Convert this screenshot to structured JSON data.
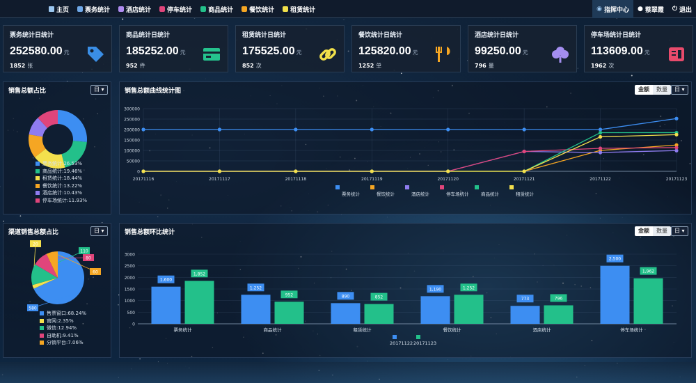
{
  "nav": {
    "items": [
      {
        "label": "主页",
        "icon": "home-icon"
      },
      {
        "label": "票务统计",
        "icon": "tag-icon"
      },
      {
        "label": "酒店统计",
        "icon": "diamond-icon"
      },
      {
        "label": "停车统计",
        "icon": "car-icon"
      },
      {
        "label": "商品统计",
        "icon": "grid-icon"
      },
      {
        "label": "餐饮统计",
        "icon": "cutlery-icon"
      },
      {
        "label": "租赁统计",
        "icon": "rent-icon"
      }
    ],
    "command_center": "指挥中心",
    "user": "蔡翠霞",
    "logout": "退出"
  },
  "cards": [
    {
      "title": "票务统计日统计",
      "value": "252580.00",
      "unit": "元",
      "count": "1852",
      "count_unit": "张",
      "icon": "ticket-tag-icon",
      "color": "#3a8ee6"
    },
    {
      "title": "商品统计日统计",
      "value": "185252.00",
      "unit": "元",
      "count": "952",
      "count_unit": "件",
      "icon": "card-icon",
      "color": "#25c28d"
    },
    {
      "title": "租赁统计日统计",
      "value": "175525.00",
      "unit": "元",
      "count": "852",
      "count_unit": "次",
      "icon": "chain-icon",
      "color": "#f1e04a"
    },
    {
      "title": "餐饮统计日统计",
      "value": "125820.00",
      "unit": "元",
      "count": "1252",
      "count_unit": "单",
      "icon": "fork-knife-icon",
      "color": "#f5a623"
    },
    {
      "title": "酒店统计日统计",
      "value": "99250.00",
      "unit": "元",
      "count": "796",
      "count_unit": "量",
      "icon": "tree-icon",
      "color": "#a48ef0"
    },
    {
      "title": "停车场统计日统计",
      "value": "113609.00",
      "unit": "元",
      "count": "1962",
      "count_unit": "次",
      "icon": "parking-icon",
      "color": "#e84b6c"
    }
  ],
  "panel_sales_share": {
    "title": "销售总额占比",
    "dropdown": "日 ▾"
  },
  "panel_sales_trend": {
    "title": "销售总额曲线统计图",
    "btn_amount": "金额",
    "btn_count": "数量",
    "dropdown": "日 ▾"
  },
  "panel_channel": {
    "title": "渠道销售总额占比",
    "dropdown": "日 ▾"
  },
  "panel_ratio": {
    "title": "销售总额环比统计",
    "btn_amount": "金额",
    "btn_count": "数量",
    "dropdown": "日 ▾"
  },
  "colors": {
    "blue": "#3d8ef2",
    "orange": "#f5a623",
    "purple": "#8f7cf0",
    "pink": "#e0457b",
    "green": "#23c08a",
    "yellow": "#f4e04d"
  },
  "chart_data": [
    {
      "type": "pie",
      "name": "销售总额占比",
      "labels": [
        "票务统计:26.53%",
        "商品统计:19.46%",
        "租赁统计:18.44%",
        "餐饮统计:13.22%",
        "酒店统计:10.43%",
        "停车场统计:11.93%"
      ],
      "values": [
        26.53,
        19.46,
        18.44,
        13.22,
        10.43,
        11.93
      ],
      "colors": [
        "#3d8ef2",
        "#23c08a",
        "#f4e04d",
        "#f5a623",
        "#8f7cf0",
        "#e0457b"
      ]
    },
    {
      "type": "line",
      "title": "销售总额曲线统计图",
      "x": [
        "20171116",
        "20171117",
        "20171118",
        "20171119",
        "20171120",
        "20171121",
        "20171122",
        "20171123"
      ],
      "yticks": [
        0,
        50000,
        100000,
        150000,
        200000,
        250000,
        300000
      ],
      "ylim": [
        0,
        300000
      ],
      "series": [
        {
          "name": "票务统计",
          "color": "#3d8ef2",
          "values": [
            200000,
            200000,
            200000,
            200000,
            200000,
            200000,
            200000,
            252580
          ]
        },
        {
          "name": "餐饮统计",
          "color": "#f5a623",
          "values": [
            0,
            0,
            0,
            0,
            0,
            0,
            100000,
            125820
          ]
        },
        {
          "name": "酒店统计",
          "color": "#8f7cf0",
          "values": [
            0,
            0,
            0,
            0,
            0,
            95000,
            90000,
            99250
          ]
        },
        {
          "name": "停车场统计",
          "color": "#e0457b",
          "values": [
            0,
            0,
            0,
            0,
            0,
            95000,
            110000,
            113609
          ]
        },
        {
          "name": "商品统计",
          "color": "#23c08a",
          "values": [
            0,
            0,
            0,
            0,
            0,
            0,
            185000,
            185252
          ]
        },
        {
          "name": "租赁统计",
          "color": "#f4e04d",
          "values": [
            0,
            0,
            0,
            0,
            0,
            0,
            165000,
            175525
          ]
        }
      ]
    },
    {
      "type": "pie",
      "name": "渠道销售总额占比",
      "labels": [
        "售票窗口:68.24%",
        "官网:2.35%",
        "微信:12.94%",
        "自助机:9.41%",
        "分销平台:7.06%"
      ],
      "values": [
        68.24,
        2.35,
        12.94,
        9.41,
        7.06
      ],
      "colors": [
        "#3d8ef2",
        "#f4e04d",
        "#23c08a",
        "#e0457b",
        "#f5a623"
      ],
      "callouts": [
        "580",
        "20",
        "110",
        "80",
        "60"
      ]
    },
    {
      "type": "bar",
      "title": "销售总额环比统计",
      "categories": [
        "票务统计",
        "商品统计",
        "租赁统计",
        "餐饮统计",
        "酒店统计",
        "停车场统计"
      ],
      "yticks": [
        0,
        500,
        1000,
        1500,
        2000,
        2500,
        3000
      ],
      "ylim": [
        0,
        3000
      ],
      "series": [
        {
          "name": "20171122",
          "color": "#3d8ef2",
          "values": [
            1600,
            1252,
            890,
            1190,
            773,
            2500
          ],
          "labels": [
            "1,600",
            "1,252",
            "890",
            "1,190",
            "773",
            "2,500"
          ]
        },
        {
          "name": "20171123",
          "color": "#23c08a",
          "values": [
            1852,
            952,
            852,
            1252,
            796,
            1962
          ],
          "labels": [
            "1,852",
            "952",
            "852",
            "1,252",
            "796",
            "1,962"
          ]
        }
      ]
    }
  ]
}
